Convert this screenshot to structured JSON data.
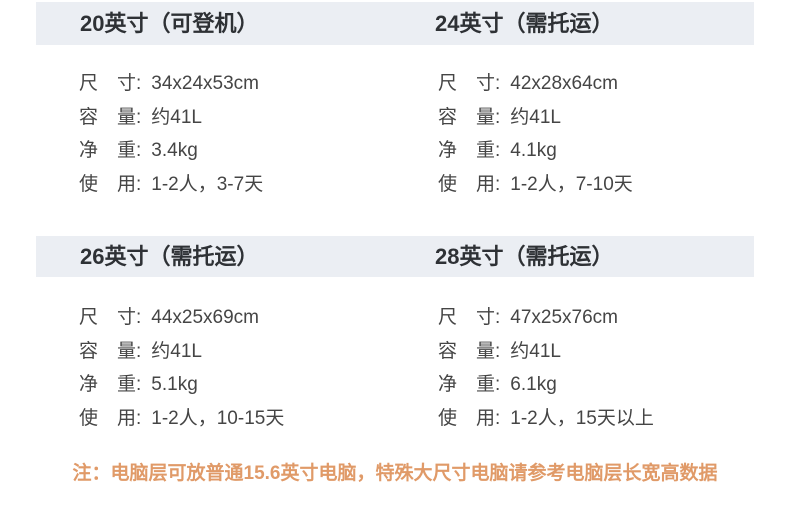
{
  "colors": {
    "header_bar_bg": "#ebeef3",
    "title_text": "#2e3135",
    "spec_text": "#454545",
    "note_text": "#e09a68",
    "page_bg": "#ffffff"
  },
  "panels": [
    {
      "title": "20英寸（可登机）",
      "specs": [
        {
          "label": "尺　寸:",
          "value": "34x24x53cm"
        },
        {
          "label": "容　量:",
          "value": "约41L"
        },
        {
          "label": "净　重:",
          "value": "3.4kg"
        },
        {
          "label": "使　用:",
          "value": "1-2人，3-7天"
        }
      ]
    },
    {
      "title": "24英寸（需托运）",
      "specs": [
        {
          "label": "尺　寸:",
          "value": "42x28x64cm"
        },
        {
          "label": "容　量:",
          "value": "约41L"
        },
        {
          "label": "净　重:",
          "value": "4.1kg"
        },
        {
          "label": "使　用:",
          "value": "1-2人，7-10天"
        }
      ]
    },
    {
      "title": "26英寸（需托运）",
      "specs": [
        {
          "label": "尺　寸:",
          "value": "44x25x69cm"
        },
        {
          "label": "容　量:",
          "value": "约41L"
        },
        {
          "label": "净　重:",
          "value": "5.1kg"
        },
        {
          "label": "使　用:",
          "value": "1-2人，10-15天"
        }
      ]
    },
    {
      "title": "28英寸（需托运）",
      "specs": [
        {
          "label": "尺　寸:",
          "value": "47x25x76cm"
        },
        {
          "label": "容　量:",
          "value": "约41L"
        },
        {
          "label": "净　重:",
          "value": "6.1kg"
        },
        {
          "label": "使　用:",
          "value": "1-2人，15天以上"
        }
      ]
    }
  ],
  "note": "注：电脑层可放普通15.6英寸电脑，特殊大尺寸电脑请参考电脑层长宽高数据"
}
